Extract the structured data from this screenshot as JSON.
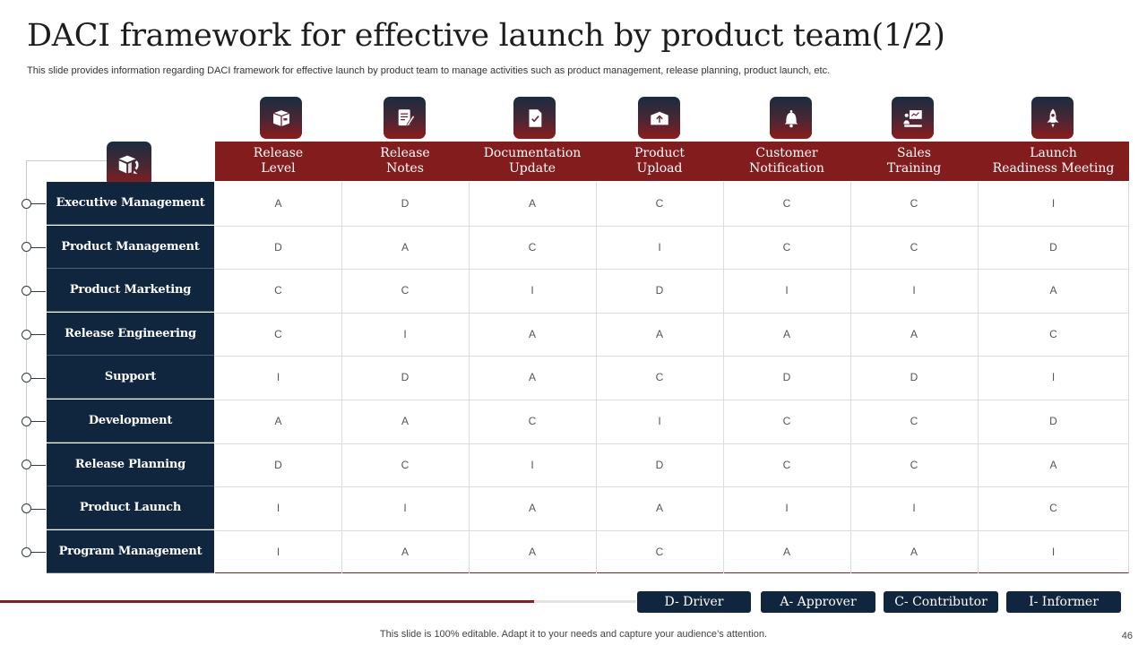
{
  "title": "DACI framework for effective launch by product team(1/2)",
  "subtitle": "This slide provides information regarding DACI framework for effective launch by product team to manage activities such as product management, release planning, product launch, etc.",
  "columns": [
    {
      "label": "Release\nLevel",
      "icon": "box-icon"
    },
    {
      "label": "Release\nNotes",
      "icon": "notes-icon"
    },
    {
      "label": "Documentation\nUpdate",
      "icon": "document-check-icon"
    },
    {
      "label": "Product\nUpload",
      "icon": "upload-box-icon"
    },
    {
      "label": "Customer\nNotification",
      "icon": "bell-icon"
    },
    {
      "label": "Sales\nTraining",
      "icon": "presentation-icon"
    },
    {
      "label": "Launch\nReadiness Meeting",
      "icon": "rocket-icon"
    }
  ],
  "corner_icon": "product-launch-icon",
  "rows": [
    {
      "label": "Executive Management",
      "values": [
        "A",
        "D",
        "A",
        "C",
        "C",
        "C",
        "I"
      ]
    },
    {
      "label": "Product Management",
      "values": [
        "D",
        "A",
        "C",
        "I",
        "C",
        "C",
        "D"
      ]
    },
    {
      "label": "Product Marketing",
      "values": [
        "C",
        "C",
        "I",
        "D",
        "I",
        "I",
        "A"
      ]
    },
    {
      "label": "Release Engineering",
      "values": [
        "C",
        "I",
        "A",
        "A",
        "A",
        "A",
        "C"
      ]
    },
    {
      "label": "Support",
      "values": [
        "I",
        "D",
        "A",
        "C",
        "D",
        "D",
        "I"
      ]
    },
    {
      "label": "Development",
      "values": [
        "A",
        "A",
        "C",
        "I",
        "C",
        "C",
        "D"
      ]
    },
    {
      "label": "Release Planning",
      "values": [
        "D",
        "C",
        "I",
        "D",
        "C",
        "C",
        "A"
      ]
    },
    {
      "label": "Product Launch",
      "values": [
        "I",
        "I",
        "A",
        "A",
        "I",
        "I",
        "C"
      ]
    },
    {
      "label": "Program Management",
      "values": [
        "I",
        "A",
        "A",
        "C",
        "A",
        "A",
        "I"
      ]
    }
  ],
  "legend": [
    "D- Driver",
    "A- Approver",
    "C- Contributor",
    "I- Informer"
  ],
  "progress": 0.84,
  "footer": "This slide is 100% editable. Adapt it to your needs and capture your audience’s attention.",
  "page_number": "46",
  "colors": {
    "accent": "#831d1d",
    "navy": "#10263e"
  }
}
